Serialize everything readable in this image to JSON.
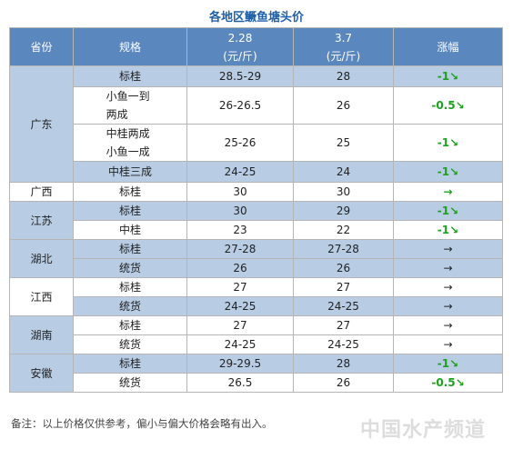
{
  "title": "各地区鳜鱼塘头价",
  "table": {
    "header": [
      "省份",
      "规格",
      [
        "2.28",
        "(元/斤)"
      ],
      [
        "3.7",
        "(元/斤)"
      ],
      "涨幅"
    ],
    "groups": [
      {
        "province": "广东",
        "rows": [
          [
            "标桂",
            "28.5-29",
            "28",
            "-1↘"
          ],
          [
            "小鱼一到两成",
            "26-26.5",
            "26",
            "-0.5↘"
          ],
          [
            "中桂两成小鱼一成",
            "25-26",
            "25",
            "-1↘"
          ],
          [
            "中桂三成",
            "24-25",
            "24",
            "-1↘"
          ]
        ]
      },
      {
        "province": "广西",
        "rows": [
          [
            "标桂",
            "30",
            "30",
            "→"
          ]
        ]
      },
      {
        "province": "江苏",
        "rows": [
          [
            "标桂",
            "30",
            "29",
            "-1↘"
          ],
          [
            "中桂",
            "23",
            "22",
            "-1↘"
          ]
        ]
      },
      {
        "province": "湖北",
        "rows": [
          [
            "标桂",
            "27-28",
            "27-28",
            "→"
          ],
          [
            "统货",
            "26",
            "26",
            "→"
          ]
        ]
      },
      {
        "province": "江西",
        "rows": [
          [
            "标桂",
            "27",
            "27",
            "→"
          ],
          [
            "统货",
            "24-25",
            "24-25",
            "→"
          ]
        ]
      },
      {
        "province": "湖南",
        "rows": [
          [
            "标桂",
            "27",
            "27",
            "→"
          ],
          [
            "统货",
            "24-25",
            "24-25",
            "→"
          ]
        ]
      },
      {
        "province": "安徽",
        "rows": [
          [
            "标桂",
            "29-29.5",
            "28",
            "-1↘"
          ],
          [
            "统货",
            "26.5",
            "26",
            "-0.5↘"
          ]
        ]
      }
    ]
  },
  "note": "备注：以上价格仅供参考，偏小与偏大价格会略有出入。",
  "watermark": "中国水产频道"
}
